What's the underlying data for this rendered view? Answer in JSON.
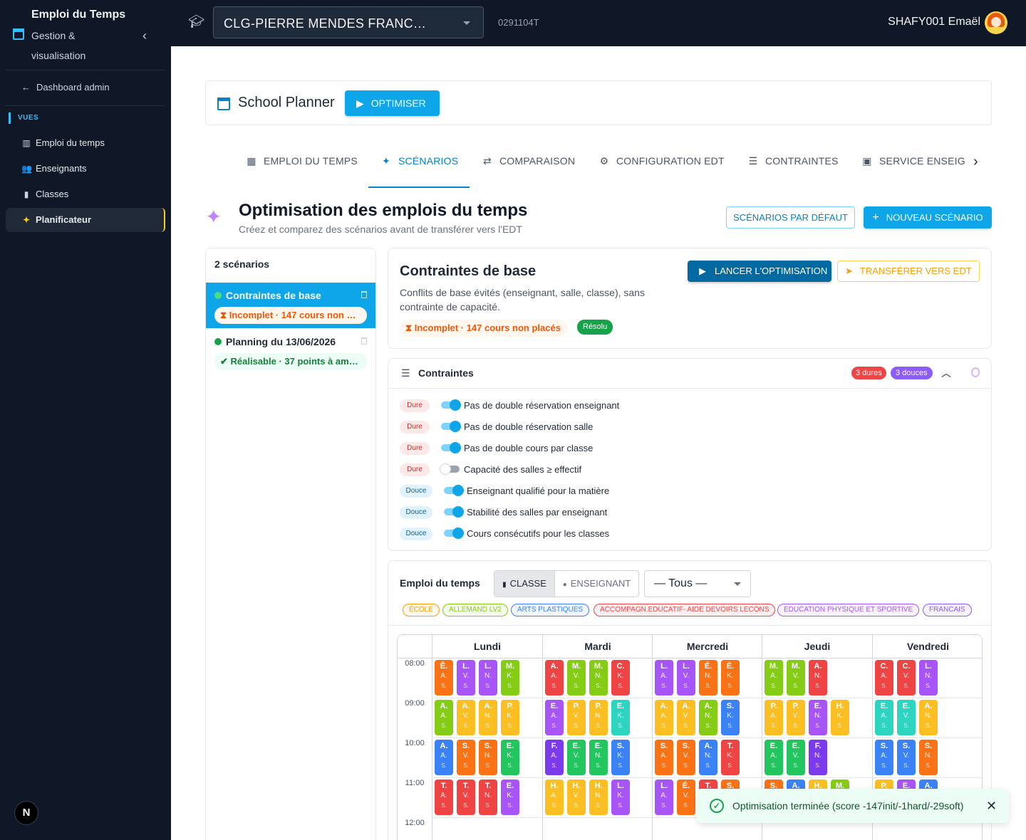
{
  "sidebar": {
    "title": "Emploi du Temps",
    "subtitle": "Gestion & visualisation",
    "back_link": "Dashboard admin",
    "section": "VUES",
    "items": [
      {
        "label": "Emploi du temps",
        "icon": "columns-icon"
      },
      {
        "label": "Enseignants",
        "icon": "people-icon"
      },
      {
        "label": "Classes",
        "icon": "book-icon"
      },
      {
        "label": "Planificateur",
        "icon": "sparkle-icon",
        "active": true
      }
    ],
    "bottom_badge": "N"
  },
  "topbar": {
    "school": "CLG-PIERRE MENDES FRANC…",
    "code": "0291104T",
    "user": "SHAFY001 Emaël"
  },
  "planner": {
    "title": "School Planner",
    "optimize_button": "OPTIMISER"
  },
  "tabs": [
    {
      "label": "EMPLOI DU TEMPS",
      "icon": "calendar-icon"
    },
    {
      "label": "SCÉNARIOS",
      "icon": "sparkle-icon",
      "active": true
    },
    {
      "label": "COMPARAISON",
      "icon": "compare-arrows-icon"
    },
    {
      "label": "CONFIGURATION EDT",
      "icon": "gear-icon"
    },
    {
      "label": "CONTRAINTES",
      "icon": "sliders-icon"
    },
    {
      "label": "SERVICE ENSEIG",
      "icon": "badge-icon"
    }
  ],
  "page": {
    "title": "Optimisation des emplois du temps",
    "subtitle": "Créez et comparez des scénarios avant de transférer vers l'EDT",
    "default_button": "SCÉNARIOS PAR DÉFAUT",
    "new_button": "NOUVEAU SCÉNARIO"
  },
  "scenarios": {
    "count_label": "2 scénarios",
    "items": [
      {
        "name": "Contraintes de base",
        "status": "Incomplet · 147 cours non …",
        "status_color": "#ea580c",
        "selected": true
      },
      {
        "name": "Planning du 13/06/2026",
        "status": "Réalisable · 37 points à am…",
        "status_color": "#16a34a",
        "selected": false
      }
    ]
  },
  "detail": {
    "title": "Contraintes de base",
    "description": "Conflits de base évités (enseignant, salle, classe), sans contrainte de capacité.",
    "status": "Incomplet · 147 cours non placés",
    "solver_badge": "Résolu",
    "launch_button": "LANCER L'OPTIMISATION",
    "transfer_button": "TRANSFÉRER VERS EDT"
  },
  "constraints": {
    "title": "Contraintes",
    "hard_count": "3 dures",
    "soft_count": "3 douces",
    "items": [
      {
        "type": "Dure",
        "label": "Pas de double réservation enseignant",
        "on": true
      },
      {
        "type": "Dure",
        "label": "Pas de double réservation salle",
        "on": true
      },
      {
        "type": "Dure",
        "label": "Pas de double cours par classe",
        "on": true
      },
      {
        "type": "Dure",
        "label": "Capacité des salles ≥ effectif",
        "on": false
      },
      {
        "type": "Douce",
        "label": "Enseignant qualifié pour la matière",
        "on": true
      },
      {
        "type": "Douce",
        "label": "Stabilité des salles par enseignant",
        "on": true
      },
      {
        "type": "Douce",
        "label": "Cours consécutifs pour les classes",
        "on": true
      }
    ]
  },
  "timetable": {
    "title": "Emploi du temps",
    "view_class": "CLASSE",
    "view_teacher": "ENSEIGNANT",
    "filter": "— Tous —",
    "legend": [
      {
        "label": "ÉCOLE",
        "color": "#f59e0b"
      },
      {
        "label": "ALLEMAND LV2",
        "color": "#84cc16"
      },
      {
        "label": "ARTS PLASTIQUES",
        "color": "#3b82f6"
      },
      {
        "label": "ACCOMPAGN.EDUCATIF- AIDE DEVOIRS LECONS",
        "color": "#ef4444"
      },
      {
        "label": "EDUCATION PHYSIQUE ET SPORTIVE",
        "color": "#a855f7"
      },
      {
        "label": "FRANCAIS",
        "color": "#8b5cf6"
      }
    ],
    "days": [
      "Lundi",
      "Mardi",
      "Mercredi",
      "Jeudi",
      "Vendredi"
    ],
    "hours": [
      "08:00",
      "09:00",
      "10:00",
      "11:00",
      "12:00"
    ],
    "slots": [
      [
        [
          [
            "Ê",
            "A",
            "S",
            "#f97316"
          ],
          [
            "L",
            "V",
            "S",
            "#a855f7"
          ],
          [
            "L",
            "N",
            "S",
            "#a855f7"
          ],
          [
            "M",
            "K",
            "S",
            "#84cc16"
          ]
        ],
        [
          [
            "A",
            "A",
            "S",
            "#84cc16"
          ],
          [
            "A",
            "V",
            "S",
            "#fbbf24"
          ],
          [
            "A",
            "N",
            "S",
            "#fbbf24"
          ],
          [
            "P",
            "K",
            "S",
            "#fbbf24"
          ]
        ],
        [
          [
            "A",
            "A",
            "S",
            "#3b82f6"
          ],
          [
            "S",
            "V",
            "S",
            "#f97316"
          ],
          [
            "S",
            "N",
            "S",
            "#f97316"
          ],
          [
            "E",
            "K",
            "S",
            "#22c55e"
          ]
        ],
        [
          [
            "T",
            "A",
            "S",
            "#ef4444"
          ],
          [
            "T",
            "V",
            "S",
            "#ef4444"
          ],
          [
            "T",
            "N",
            "S",
            "#ef4444"
          ],
          [
            "E",
            "K",
            "S",
            "#a855f7"
          ]
        ]
      ],
      [
        [
          [
            "A",
            "A",
            "S",
            "#ef4444"
          ],
          [
            "M",
            "V",
            "S",
            "#84cc16"
          ],
          [
            "M",
            "N",
            "S",
            "#84cc16"
          ],
          [
            "C",
            "K",
            "S",
            "#ef4444"
          ]
        ],
        [
          [
            "E",
            "A",
            "S",
            "#a855f7"
          ],
          [
            "P",
            "V",
            "S",
            "#fbbf24"
          ],
          [
            "P",
            "N",
            "S",
            "#fbbf24"
          ],
          [
            "E",
            "K",
            "S",
            "#2dd4bf"
          ]
        ],
        [
          [
            "F",
            "A",
            "S",
            "#7c3aed"
          ],
          [
            "E",
            "V",
            "S",
            "#22c55e"
          ],
          [
            "E",
            "N",
            "S",
            "#22c55e"
          ],
          [
            "S",
            "K",
            "S",
            "#3b82f6"
          ]
        ],
        [
          [
            "H",
            "A",
            "S",
            "#fbbf24"
          ],
          [
            "H",
            "V",
            "S",
            "#fbbf24"
          ],
          [
            "H",
            "N",
            "S",
            "#fbbf24"
          ],
          [
            "L",
            "K",
            "S",
            "#a855f7"
          ]
        ]
      ],
      [
        [
          [
            "L",
            "A",
            "S",
            "#a855f7"
          ],
          [
            "L",
            "V",
            "S",
            "#a855f7"
          ],
          [
            "É",
            "N",
            "S",
            "#f97316"
          ],
          [
            "É",
            "K",
            "S",
            "#f97316"
          ]
        ],
        [
          [
            "A",
            "A",
            "S",
            "#fbbf24"
          ],
          [
            "A",
            "V",
            "S",
            "#fbbf24"
          ],
          [
            "A",
            "N",
            "S",
            "#84cc16"
          ],
          [
            "S",
            "K",
            "S",
            "#3b82f6"
          ]
        ],
        [
          [
            "S",
            "A",
            "S",
            "#f97316"
          ],
          [
            "S",
            "V",
            "S",
            "#f97316"
          ],
          [
            "A",
            "N",
            "S",
            "#3b82f6"
          ],
          [
            "T",
            "K",
            "S",
            "#ef4444"
          ]
        ],
        [
          [
            "L",
            "A",
            "S",
            "#a855f7"
          ],
          [
            "É",
            "V",
            "S",
            "#f97316"
          ],
          [
            "T",
            "N",
            "S",
            "#ef4444"
          ],
          [
            "S",
            "K",
            "S",
            "#f97316"
          ]
        ]
      ],
      [
        [
          [
            "M",
            "A",
            "S",
            "#84cc16"
          ],
          [
            "M",
            "V",
            "S",
            "#84cc16"
          ],
          [
            "A",
            "N",
            "S",
            "#ef4444"
          ]
        ],
        [
          [
            "P",
            "A",
            "S",
            "#fbbf24"
          ],
          [
            "P",
            "V",
            "S",
            "#fbbf24"
          ],
          [
            "E",
            "N",
            "S",
            "#a855f7"
          ],
          [
            "H",
            "K",
            "S",
            "#fbbf24"
          ]
        ],
        [
          [
            "E",
            "A",
            "S",
            "#22c55e"
          ],
          [
            "E",
            "V",
            "S",
            "#22c55e"
          ],
          [
            "F",
            "N",
            "S",
            "#7c3aed"
          ]
        ],
        [
          [
            "S",
            "A",
            "S",
            "#f97316"
          ],
          [
            "A",
            "V",
            "S",
            "#3b82f6"
          ],
          [
            "H",
            "N",
            "S",
            "#fbbf24"
          ],
          [
            "M",
            "K",
            "S",
            "#84cc16"
          ]
        ]
      ],
      [
        [
          [
            "C",
            "A",
            "S",
            "#ef4444"
          ],
          [
            "C",
            "V",
            "S",
            "#ef4444"
          ],
          [
            "L",
            "N",
            "S",
            "#a855f7"
          ]
        ],
        [
          [
            "E",
            "A",
            "S",
            "#2dd4bf"
          ],
          [
            "E",
            "V",
            "S",
            "#2dd4bf"
          ],
          [
            "A",
            "N",
            "S",
            "#fbbf24"
          ]
        ],
        [
          [
            "S",
            "A",
            "S",
            "#3b82f6"
          ],
          [
            "S",
            "V",
            "S",
            "#3b82f6"
          ],
          [
            "S",
            "N",
            "S",
            "#f97316"
          ]
        ],
        [
          [
            "P",
            "A",
            "S",
            "#fbbf24"
          ],
          [
            "E",
            "V",
            "S",
            "#a855f7"
          ],
          [
            "A",
            "N",
            "S",
            "#3b82f6"
          ]
        ]
      ]
    ]
  },
  "toast": {
    "message": "Optimisation terminée (score -147init/-1hard/-29soft)"
  }
}
